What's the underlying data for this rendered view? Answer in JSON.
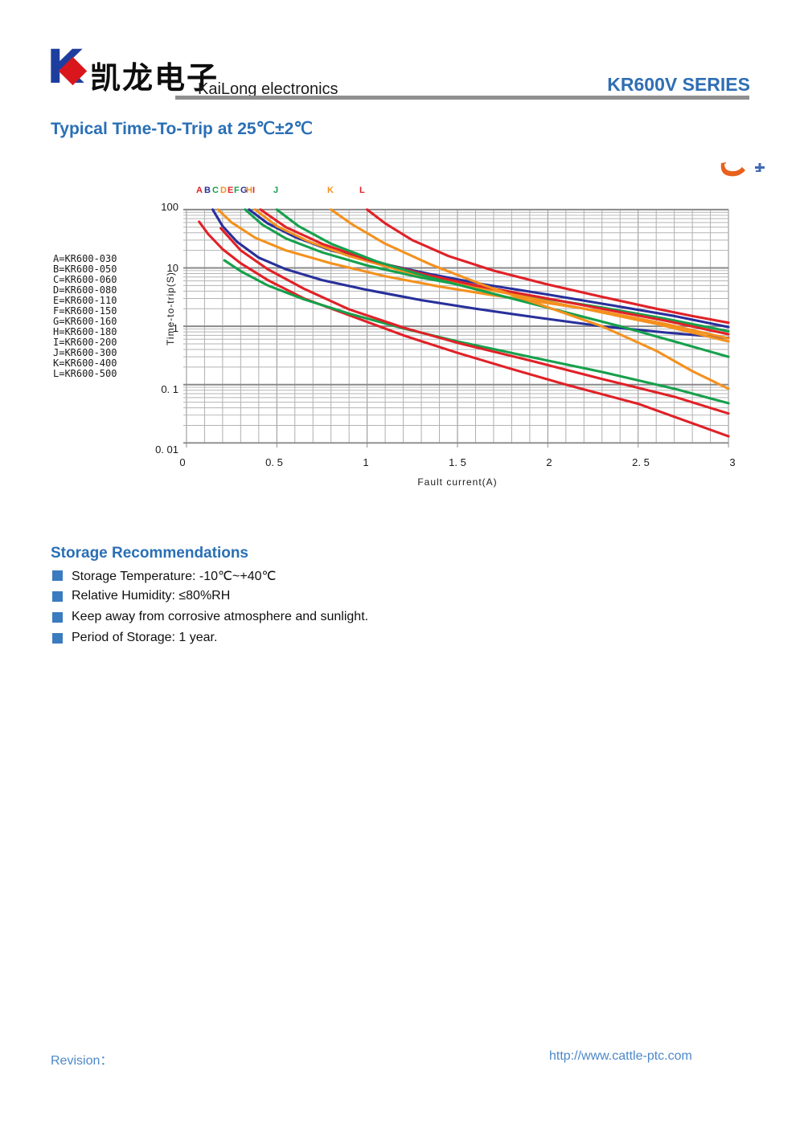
{
  "header": {
    "logo_letter": "K",
    "company_cn": "凯龙电子",
    "company_en": "KaiLong electronics",
    "series": "KR600V SERIES"
  },
  "title": "Typical Time-To-Trip at 25℃±2℃",
  "chart_data": {
    "type": "line",
    "title": "Typical Time-To-Trip at 25℃±2℃",
    "xlabel": "Fault current(A)",
    "ylabel": "Time-to-trip(S)",
    "xlim": [
      0,
      3
    ],
    "ylim": [
      0.01,
      100
    ],
    "y_scale": "log",
    "grid": "on",
    "x_tick_labels": [
      "0",
      "0. 5",
      "1",
      "1. 5",
      "2",
      "2. 5",
      "3"
    ],
    "x_tick_values": [
      0,
      0.5,
      1,
      1.5,
      2,
      2.5,
      3
    ],
    "y_tick_labels": [
      "100",
      "10",
      "1",
      "0. 1",
      "0. 01"
    ],
    "y_tick_values": [
      100,
      10,
      1,
      0.1,
      0.01
    ],
    "legend_position": "left",
    "legend": [
      "A=KR600-030",
      "B=KR600-050",
      "C=KR600-060",
      "D=KR600-080",
      "E=KR600-110",
      "F=KR600-150",
      "G=KR600-160",
      "H=KR600-180",
      "I=KR600-200",
      "J=KR600-300",
      "K=KR600-400",
      "L=KR600-500"
    ],
    "series": [
      {
        "name": "A",
        "model": "KR600-030",
        "color": "#e02127",
        "label_x": 0.092,
        "points": [
          [
            0.07,
            62
          ],
          [
            0.12,
            38
          ],
          [
            0.2,
            21
          ],
          [
            0.3,
            12
          ],
          [
            0.45,
            6.2
          ],
          [
            0.65,
            3.0
          ],
          [
            0.9,
            1.55
          ],
          [
            1.2,
            0.7
          ],
          [
            1.5,
            0.35
          ],
          [
            1.8,
            0.185
          ],
          [
            2.1,
            0.1
          ],
          [
            2.5,
            0.047
          ],
          [
            3,
            0.013
          ]
        ]
      },
      {
        "name": "B",
        "model": "KR600-050",
        "color": "#28309b",
        "label_x": 0.136,
        "points": [
          [
            0.145,
            100
          ],
          [
            0.2,
            52
          ],
          [
            0.28,
            28
          ],
          [
            0.4,
            15
          ],
          [
            0.55,
            9.5
          ],
          [
            0.75,
            6.2
          ],
          [
            1.0,
            4.2
          ],
          [
            1.3,
            2.8
          ],
          [
            1.6,
            2.0
          ],
          [
            1.95,
            1.4
          ],
          [
            2.3,
            1.0
          ],
          [
            2.65,
            0.78
          ],
          [
            3,
            0.63
          ]
        ]
      },
      {
        "name": "C",
        "model": "KR600-060",
        "color": "#16a04c",
        "label_x": 0.18,
        "points": [
          [
            0.21,
            13.5
          ],
          [
            0.3,
            8.8
          ],
          [
            0.45,
            5.0
          ],
          [
            0.65,
            2.9
          ],
          [
            0.9,
            1.65
          ],
          [
            1.2,
            0.92
          ],
          [
            1.5,
            0.55
          ],
          [
            1.9,
            0.3
          ],
          [
            2.3,
            0.165
          ],
          [
            2.7,
            0.085
          ],
          [
            3,
            0.048
          ]
        ]
      },
      {
        "name": "D",
        "model": "KR600-080",
        "color": "#f4911e",
        "label_x": 0.224,
        "points": [
          [
            0.175,
            100
          ],
          [
            0.25,
            60
          ],
          [
            0.38,
            33
          ],
          [
            0.55,
            20
          ],
          [
            0.8,
            12
          ],
          [
            1.1,
            7.2
          ],
          [
            1.4,
            4.8
          ],
          [
            1.7,
            3.4
          ],
          [
            2.0,
            2.5
          ],
          [
            2.3,
            1.8
          ],
          [
            2.65,
            1.1
          ],
          [
            3,
            0.62
          ]
        ]
      },
      {
        "name": "E",
        "model": "KR600-110",
        "color": "#e02127",
        "label_x": 0.263,
        "points": [
          [
            0.19,
            48
          ],
          [
            0.3,
            20
          ],
          [
            0.45,
            9.5
          ],
          [
            0.65,
            4.4
          ],
          [
            0.9,
            1.95
          ],
          [
            1.2,
            0.95
          ],
          [
            1.5,
            0.52
          ],
          [
            1.9,
            0.26
          ],
          [
            2.3,
            0.125
          ],
          [
            2.7,
            0.062
          ],
          [
            3,
            0.032
          ]
        ]
      },
      {
        "name": "F",
        "model": "KR600-150",
        "color": "#16a04c",
        "label_x": 0.3,
        "points": [
          [
            0.325,
            100
          ],
          [
            0.42,
            55
          ],
          [
            0.55,
            32
          ],
          [
            0.75,
            18.5
          ],
          [
            1.0,
            11
          ],
          [
            1.3,
            6.8
          ],
          [
            1.6,
            4.6
          ],
          [
            1.95,
            3.1
          ],
          [
            2.3,
            2.1
          ],
          [
            2.65,
            1.35
          ],
          [
            3,
            0.82
          ]
        ]
      },
      {
        "name": "G",
        "model": "KR600-160",
        "color": "#28309b",
        "label_x": 0.335,
        "points": [
          [
            0.347,
            100
          ],
          [
            0.45,
            58
          ],
          [
            0.6,
            34
          ],
          [
            0.8,
            20
          ],
          [
            1.05,
            12.5
          ],
          [
            1.35,
            7.8
          ],
          [
            1.65,
            5.2
          ],
          [
            2.0,
            3.5
          ],
          [
            2.35,
            2.3
          ],
          [
            2.7,
            1.5
          ],
          [
            3,
            0.97
          ]
        ]
      },
      {
        "name": "H",
        "model": "KR600-180",
        "color": "#f4911e",
        "label_x": 0.365,
        "points": [
          [
            0.38,
            100
          ],
          [
            0.5,
            52
          ],
          [
            0.68,
            28
          ],
          [
            0.9,
            16
          ],
          [
            1.2,
            8.8
          ],
          [
            1.5,
            5.4
          ],
          [
            1.85,
            3.3
          ],
          [
            2.2,
            2.0
          ],
          [
            2.6,
            1.1
          ],
          [
            3,
            0.55
          ]
        ]
      },
      {
        "name": "I",
        "model": "KR600-200",
        "color": "#e02127",
        "label_x": 0.397,
        "points": [
          [
            0.41,
            100
          ],
          [
            0.55,
            50
          ],
          [
            0.75,
            26
          ],
          [
            1.0,
            14
          ],
          [
            1.3,
            8.0
          ],
          [
            1.6,
            5.0
          ],
          [
            1.95,
            3.2
          ],
          [
            2.3,
            2.0
          ],
          [
            2.65,
            1.25
          ],
          [
            3,
            0.73
          ]
        ]
      },
      {
        "name": "J",
        "model": "KR600-300",
        "color": "#16a04c",
        "label_x": 0.513,
        "points": [
          [
            0.5,
            100
          ],
          [
            0.62,
            52
          ],
          [
            0.8,
            26
          ],
          [
            1.05,
            13
          ],
          [
            1.35,
            6.8
          ],
          [
            1.7,
            3.6
          ],
          [
            2.05,
            1.9
          ],
          [
            2.4,
            1.0
          ],
          [
            2.7,
            0.55
          ],
          [
            3,
            0.3
          ]
        ]
      },
      {
        "name": "K",
        "model": "KR600-400",
        "color": "#f4911e",
        "label_x": 0.807,
        "points": [
          [
            0.8,
            100
          ],
          [
            0.92,
            55
          ],
          [
            1.1,
            26
          ],
          [
            1.35,
            11.5
          ],
          [
            1.65,
            5.0
          ],
          [
            1.95,
            2.4
          ],
          [
            2.3,
            1.0
          ],
          [
            2.6,
            0.38
          ],
          [
            2.8,
            0.17
          ],
          [
            3,
            0.085
          ]
        ]
      },
      {
        "name": "L",
        "model": "KR600-500",
        "color": "#e02127",
        "label_x": 0.982,
        "points": [
          [
            1.0,
            100
          ],
          [
            1.1,
            58
          ],
          [
            1.25,
            30
          ],
          [
            1.45,
            16
          ],
          [
            1.7,
            9.0
          ],
          [
            2.0,
            5.2
          ],
          [
            2.3,
            3.2
          ],
          [
            2.6,
            2.0
          ],
          [
            2.8,
            1.5
          ],
          [
            3,
            1.15
          ]
        ]
      }
    ]
  },
  "storage": {
    "heading": "Storage Recommendations",
    "items": [
      "Storage Temperature: -10℃~+40℃",
      "Relative Humidity: ≤80%RH",
      "Keep away from corrosive atmosphere and sunlight.",
      "Period of Storage: 1 year."
    ]
  },
  "footer": {
    "revision_label": "Revision：",
    "url": "http://www.cattle-ptc.com"
  },
  "colors": {
    "heading_blue": "#2a6fb5",
    "series_blue": "#2f6eb4",
    "footer_blue": "#4d88c9",
    "bullet_blue": "#3b7bbf",
    "rule_gray": "#8f8f8f",
    "curve_red": "#e02127",
    "curve_navy": "#28309b",
    "curve_orange": "#f4911e",
    "curve_green": "#16a04c"
  }
}
